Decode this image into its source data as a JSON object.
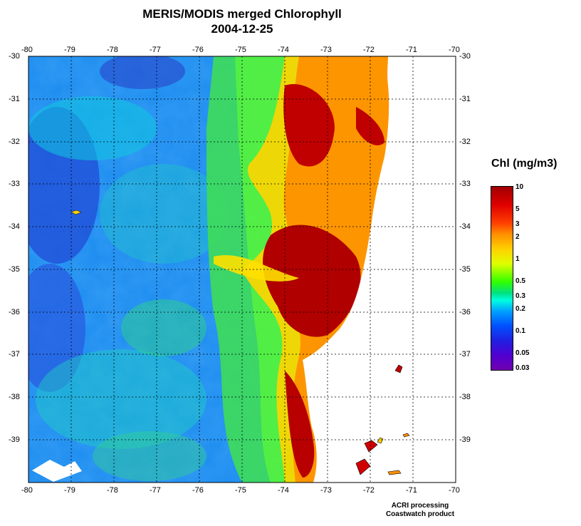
{
  "title": {
    "line1": "MERIS/MODIS merged Chlorophyll",
    "line2": "2004-12-25"
  },
  "axes": {
    "x_ticks": [
      "-80",
      "-79",
      "-78",
      "-77",
      "-76",
      "-75",
      "-74",
      "-73",
      "-72",
      "-71",
      "-70"
    ],
    "y_ticks": [
      "-30",
      "-31",
      "-32",
      "-33",
      "-34",
      "-35",
      "-36",
      "-37",
      "-38",
      "-39"
    ]
  },
  "legend": {
    "title": "Chl (mg/m3)",
    "labels": [
      "10",
      "5",
      "3",
      "2",
      "1",
      "0.5",
      "0.3",
      "0.2",
      "0.1",
      "0.05",
      "0.03"
    ]
  },
  "footer": {
    "line1": "ACRI processing",
    "line2": "Coastwatch product"
  },
  "colors": {
    "ocean_low": "#2050e0",
    "ocean_mid": "#00c8ff",
    "coastal_green": "#30e060",
    "high_yellow": "#ffd000",
    "max_red": "#b00000",
    "land": "#ffffff"
  }
}
